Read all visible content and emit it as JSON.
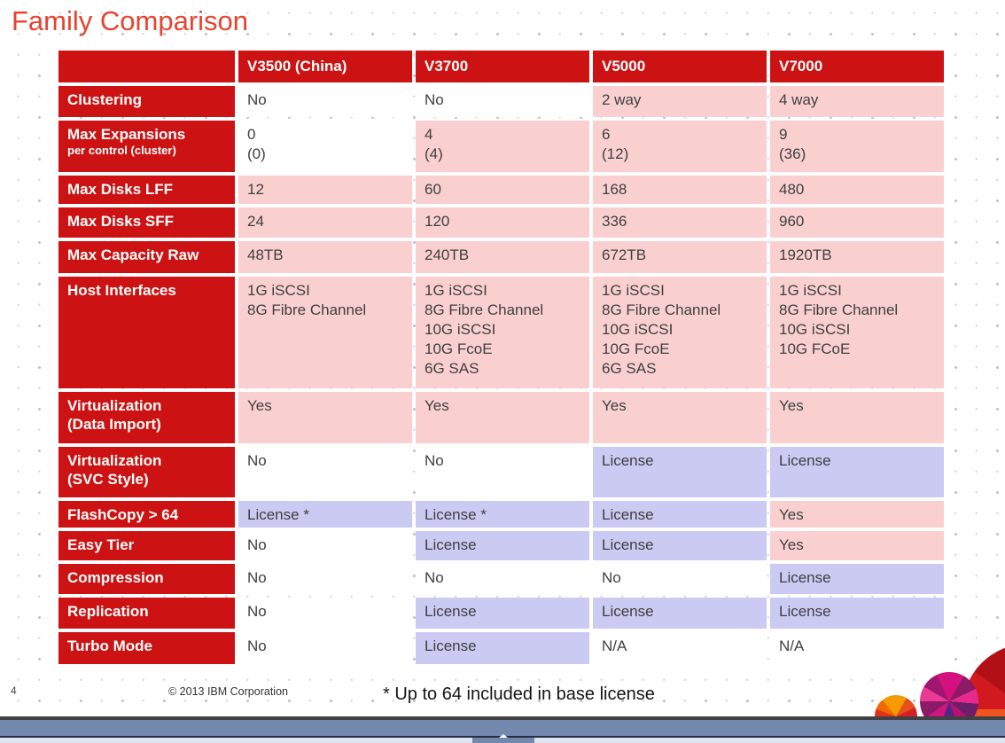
{
  "title": "Family Comparison",
  "colors": {
    "title": "#e8432e",
    "table_header": "#cc1212",
    "cell_text": "#3f3f3f",
    "bar_dark": "#414143",
    "bar_steel": "#7288ad",
    "bar_line": "#272e3e",
    "strip_light": "#e0e4f0"
  },
  "status_colors": {
    "none": "#ffffff",
    "included": "#f9d0cf",
    "license": "#cacaf3"
  },
  "table": {
    "columns": [
      "",
      "V3500 (China)",
      "V3700",
      "V5000",
      "V7000"
    ],
    "rows": [
      {
        "label": "Clustering",
        "cells": [
          {
            "text": "No",
            "status": "none"
          },
          {
            "text": "No",
            "status": "none"
          },
          {
            "text": "2 way",
            "status": "included"
          },
          {
            "text": "4 way",
            "status": "included"
          }
        ]
      },
      {
        "label": "Max Expansions",
        "sublabel": "per control (cluster)",
        "cells": [
          {
            "text": "0\n(0)",
            "status": "none"
          },
          {
            "text": "4\n(4)",
            "status": "included"
          },
          {
            "text": "6\n(12)",
            "status": "included"
          },
          {
            "text": "9\n(36)",
            "status": "included"
          }
        ]
      },
      {
        "label": "Max Disks LFF",
        "cells": [
          {
            "text": "12",
            "status": "included"
          },
          {
            "text": "60",
            "status": "included"
          },
          {
            "text": "168",
            "status": "included"
          },
          {
            "text": "480",
            "status": "included"
          }
        ]
      },
      {
        "label": "Max Disks SFF",
        "cells": [
          {
            "text": "24",
            "status": "included"
          },
          {
            "text": "120",
            "status": "included"
          },
          {
            "text": "336",
            "status": "included"
          },
          {
            "text": "960",
            "status": "included"
          }
        ]
      },
      {
        "label": "Max Capacity Raw",
        "cells": [
          {
            "text": "48TB",
            "status": "included"
          },
          {
            "text": "240TB",
            "status": "included"
          },
          {
            "text": "672TB",
            "status": "included"
          },
          {
            "text": "1920TB",
            "status": "included"
          }
        ]
      },
      {
        "label": "Host Interfaces",
        "cells": [
          {
            "text": "1G iSCSI\n8G Fibre Channel",
            "status": "included"
          },
          {
            "text": "1G iSCSI\n8G Fibre Channel\n10G iSCSI\n10G FcoE\n6G SAS",
            "status": "included"
          },
          {
            "text": "1G iSCSI\n8G Fibre Channel\n10G iSCSI\n10G FcoE\n6G SAS",
            "status": "included"
          },
          {
            "text": "1G iSCSI\n8G Fibre Channel\n10G iSCSI\n10G FCoE",
            "status": "included"
          }
        ]
      },
      {
        "label": "Virtualization\n(Data Import)",
        "cells": [
          {
            "text": "Yes",
            "status": "included"
          },
          {
            "text": "Yes",
            "status": "included"
          },
          {
            "text": "Yes",
            "status": "included"
          },
          {
            "text": "Yes",
            "status": "included"
          }
        ]
      },
      {
        "label": "Virtualization\n(SVC Style)",
        "cells": [
          {
            "text": "No",
            "status": "none"
          },
          {
            "text": "No",
            "status": "none"
          },
          {
            "text": "License",
            "status": "license"
          },
          {
            "text": "License",
            "status": "license"
          }
        ]
      },
      {
        "label": "FlashCopy > 64",
        "cells": [
          {
            "text": "License *",
            "status": "license"
          },
          {
            "text": "License *",
            "status": "license"
          },
          {
            "text": "License",
            "status": "license"
          },
          {
            "text": "Yes",
            "status": "included"
          }
        ]
      },
      {
        "label": "Easy Tier",
        "cells": [
          {
            "text": "No",
            "status": "none"
          },
          {
            "text": "License",
            "status": "license"
          },
          {
            "text": "License",
            "status": "license"
          },
          {
            "text": "Yes",
            "status": "included"
          }
        ]
      },
      {
        "label": "Compression",
        "cells": [
          {
            "text": "No",
            "status": "none"
          },
          {
            "text": "No",
            "status": "none"
          },
          {
            "text": "No",
            "status": "none"
          },
          {
            "text": "License",
            "status": "license"
          }
        ]
      },
      {
        "label": "Replication",
        "cells": [
          {
            "text": "No",
            "status": "none"
          },
          {
            "text": "License",
            "status": "license"
          },
          {
            "text": "License",
            "status": "license"
          },
          {
            "text": "License",
            "status": "license"
          }
        ]
      },
      {
        "label": "Turbo Mode",
        "cells": [
          {
            "text": "No",
            "status": "none"
          },
          {
            "text": "License",
            "status": "license"
          },
          {
            "text": "N/A",
            "status": "none"
          },
          {
            "text": "N/A",
            "status": "none"
          }
        ]
      }
    ]
  },
  "footer": {
    "page_number": "4",
    "copyright": "© 2013 IBM Corporation",
    "footnote": "* Up to 64 included in base license"
  }
}
